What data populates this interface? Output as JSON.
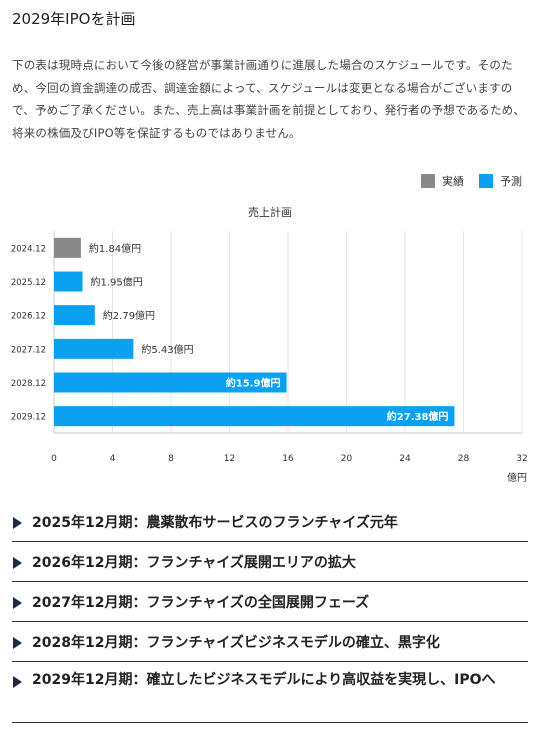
{
  "page": {
    "title": "2029年IPOを計画",
    "description": "下の表は現時点において今後の経営が事業計画通りに進展した場合のスケジュールです。そのため、今回の資金調達の成否、調達金額によって、スケジュールは変更となる場合がございますので、予めご了承ください。また、売上高は事業計画を前提としており、発行者の予想であるため、将来の株価及びIPO等を保証するものではありません。"
  },
  "legend": [
    {
      "label": "実績",
      "color": "#888888"
    },
    {
      "label": "予測",
      "color": "#0ba0f0"
    }
  ],
  "chart_data": {
    "type": "bar",
    "orientation": "horizontal",
    "title": "売上計画",
    "xlabel": "億円",
    "categories": [
      "2024.12",
      "2025.12",
      "2026.12",
      "2027.12",
      "2028.12",
      "2029.12"
    ],
    "values": [
      1.84,
      1.95,
      2.79,
      5.43,
      15.9,
      27.38
    ],
    "value_labels": [
      "約1.84億円",
      "約1.95億円",
      "約2.79億円",
      "約5.43億円",
      "約15.9億円",
      "約27.38億円"
    ],
    "series_type": [
      "実績",
      "予測",
      "予測",
      "予測",
      "予測",
      "予測"
    ],
    "xlim": [
      0,
      32
    ],
    "xticks": [
      0,
      4,
      8,
      12,
      16,
      20,
      24,
      28,
      32
    ],
    "grid": true,
    "legend_position": "top-right",
    "colors": {
      "actual": "#888888",
      "forecast": "#0ba0f0"
    }
  },
  "accordion": [
    {
      "label": "2025年12月期：農薬散布サービスのフランチャイズ元年"
    },
    {
      "label": "2026年12月期：フランチャイズ展開エリアの拡大"
    },
    {
      "label": "2027年12月期：フランチャイズの全国展開フェーズ"
    },
    {
      "label": "2028年12月期：フランチャイズビジネスモデルの確立、黒字化"
    },
    {
      "label": "2029年12月期：確立したビジネスモデルにより高収益を実現し、IPOへ"
    }
  ]
}
